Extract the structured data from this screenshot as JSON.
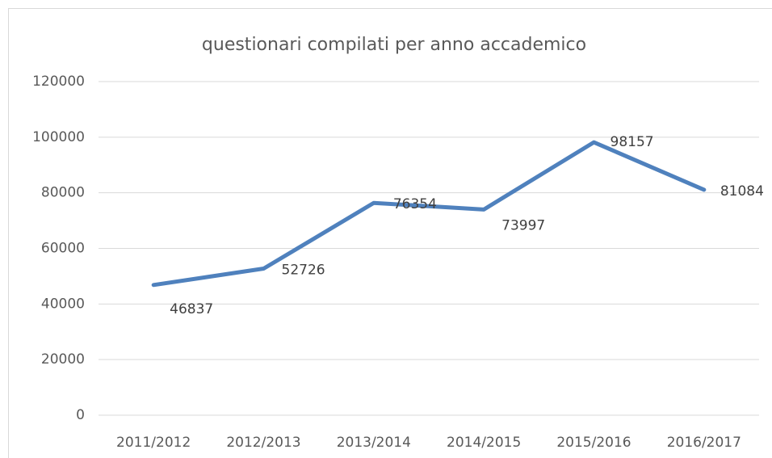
{
  "chart_data": {
    "type": "line",
    "title": "questionari compilati per anno accademico",
    "categories": [
      "2011/2012",
      "2012/2013",
      "2013/2014",
      "2014/2015",
      "2015/2016",
      "2016/2017"
    ],
    "series": [
      {
        "name": "questionari compilati",
        "color": "#4f81bd",
        "values": [
          46837,
          52726,
          76354,
          73997,
          98157,
          81084
        ]
      }
    ],
    "ylim": [
      0,
      120000
    ],
    "yticks": [
      0,
      20000,
      40000,
      60000,
      80000,
      100000,
      120000
    ],
    "grid": true
  }
}
